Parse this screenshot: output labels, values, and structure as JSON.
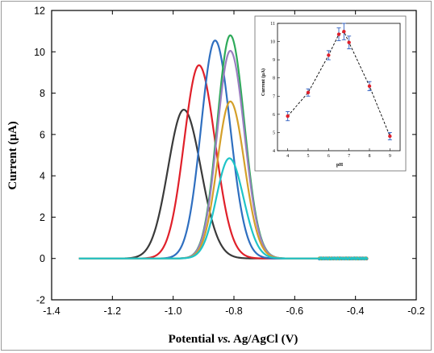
{
  "chart_data": [
    {
      "type": "line",
      "xlabel_main": "Potential ",
      "xlabel_italic": "vs.",
      "xlabel_rest": " Ag/AgCl (V)",
      "ylabel": "Current (μA)",
      "xlim": [
        -1.4,
        -0.2
      ],
      "ylim": [
        -2,
        12
      ],
      "xticks": [
        -1.4,
        -1.2,
        -1.0,
        -0.8,
        -0.6,
        -0.4,
        -0.2
      ],
      "xtick_labels": [
        "-1.4",
        "-1.2",
        "-1.0",
        "-0.8",
        "-0.6",
        "-0.4",
        "-0.2"
      ],
      "yticks": [
        -2,
        0,
        2,
        4,
        6,
        8,
        10,
        12
      ],
      "ytick_labels": [
        "-2",
        "0",
        "2",
        "4",
        "6",
        "8",
        "10",
        "12"
      ],
      "x_range": [
        -1.31,
        -0.36
      ],
      "series": [
        {
          "color": "#3a3a3a",
          "peak_x": -0.965,
          "peak_y": 7.2,
          "width": 0.052
        },
        {
          "color": "#e0202a",
          "peak_x": -0.915,
          "peak_y": 9.35,
          "width": 0.049
        },
        {
          "color": "#2f6fc0",
          "peak_x": -0.862,
          "peak_y": 10.55,
          "width": 0.046
        },
        {
          "color": "#2eaa5a",
          "peak_x": -0.812,
          "peak_y": 10.8,
          "width": 0.043
        },
        {
          "color": "#9a7fc0",
          "peak_x": -0.812,
          "peak_y": 10.05,
          "width": 0.043
        },
        {
          "color": "#d4a02a",
          "peak_x": -0.812,
          "peak_y": 7.6,
          "width": 0.043
        },
        {
          "color": "#1fc4c8",
          "peak_x": -0.815,
          "peak_y": 4.85,
          "width": 0.043
        }
      ]
    },
    {
      "type": "scatter",
      "xlabel": "pH",
      "ylabel": "Current (μA)",
      "xlim": [
        3.5,
        9.5
      ],
      "ylim": [
        4,
        11
      ],
      "xticks": [
        4,
        5,
        6,
        7,
        8,
        9
      ],
      "xtick_labels": [
        "4",
        "5",
        "6",
        "7",
        "8",
        "9"
      ],
      "yticks": [
        4,
        5,
        6,
        7,
        8,
        9,
        10,
        11
      ],
      "ytick_labels": [
        "4",
        "5",
        "6",
        "7",
        "8",
        "9",
        "10",
        "11"
      ],
      "x": [
        4,
        5,
        6,
        6.5,
        6.75,
        7,
        8,
        9
      ],
      "y": [
        5.9,
        7.2,
        9.25,
        10.4,
        10.55,
        9.95,
        7.55,
        4.8
      ],
      "err": [
        0.25,
        0.2,
        0.25,
        0.35,
        0.45,
        0.35,
        0.25,
        0.2
      ],
      "marker_color": "#e0202a",
      "errorbar_color": "#2f5fc0",
      "line_style": "dashed"
    }
  ]
}
